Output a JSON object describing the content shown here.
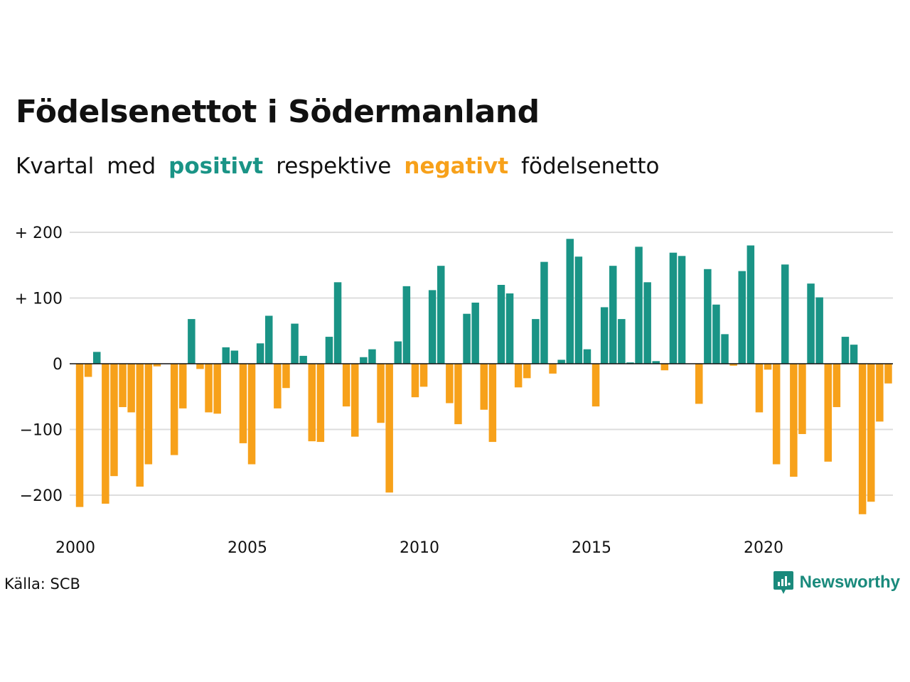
{
  "title": "Födelsenettot i Södermanland",
  "subtitle": {
    "part1": "Kvartal",
    "part2": "med",
    "positive_word": "positivt",
    "part3": "respektive",
    "negative_word": "negativt",
    "part4": "födelsenetto"
  },
  "source": "Källa: SCB",
  "brand": "Newsworthy",
  "colors": {
    "positive": "#1a9486",
    "negative": "#f7a11a",
    "grid": "#dddddd"
  },
  "chart_data": {
    "type": "bar",
    "title": "Födelsenettot i Södermanland",
    "xlabel": "",
    "ylabel": "",
    "ylim": [
      -240,
      200
    ],
    "xlim": [
      2000,
      2024
    ],
    "y_ticks": [
      {
        "value": 200,
        "label": "+ 200"
      },
      {
        "value": 100,
        "label": "+ 100"
      },
      {
        "value": 0,
        "label": "0"
      },
      {
        "value": -100,
        "label": "−100"
      },
      {
        "value": -200,
        "label": "−200"
      }
    ],
    "x_ticks": [
      {
        "value": 2000,
        "label": "2000"
      },
      {
        "value": 2005,
        "label": "2005"
      },
      {
        "value": 2010,
        "label": "2010"
      },
      {
        "value": 2015,
        "label": "2015"
      },
      {
        "value": 2020,
        "label": "2020"
      }
    ],
    "start_year": 2000,
    "periods_per_year": 4,
    "values": [
      -218,
      -20,
      18,
      -213,
      -171,
      -66,
      -74,
      -187,
      -153,
      -4,
      0,
      -139,
      -68,
      68,
      -8,
      -74,
      -76,
      25,
      20,
      -121,
      -153,
      31,
      73,
      -68,
      -37,
      61,
      12,
      -118,
      -119,
      41,
      124,
      -65,
      -111,
      10,
      22,
      -90,
      -196,
      34,
      118,
      -51,
      -35,
      112,
      149,
      -60,
      -92,
      76,
      93,
      -70,
      -119,
      120,
      107,
      -36,
      -22,
      68,
      155,
      -15,
      6,
      190,
      163,
      22,
      -65,
      86,
      149,
      68,
      2,
      178,
      124,
      4,
      -10,
      169,
      164,
      0,
      -61,
      144,
      90,
      45,
      -3,
      141,
      180,
      -74,
      -9,
      -153,
      151,
      -172,
      -107,
      122,
      101,
      -149,
      -66,
      41,
      29,
      -229,
      -210,
      -88,
      -30
    ]
  }
}
